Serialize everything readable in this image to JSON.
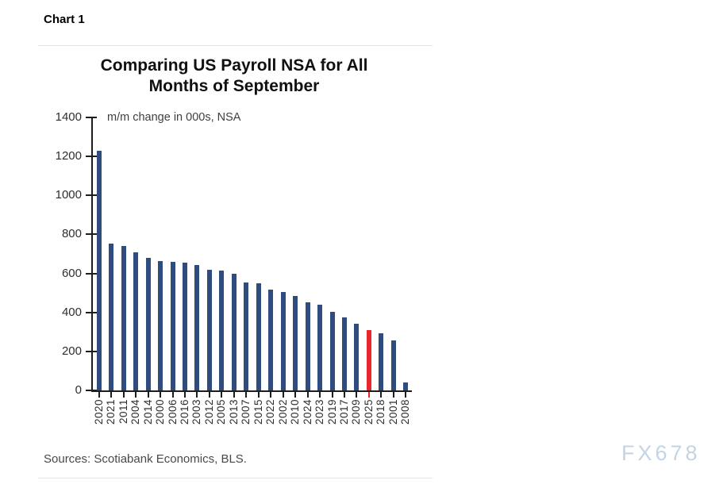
{
  "page": {
    "chart_label": "Chart 1",
    "sources": "Sources: Scotiabank Economics, BLS.",
    "watermark": "FX678"
  },
  "chart_data": {
    "type": "bar",
    "title": "Comparing US Payroll NSA for All Months of September",
    "title_lines": [
      "Comparing US Payroll NSA for All",
      "Months of September"
    ],
    "subtitle": "m/m change in 000s, NSA",
    "xlabel": "",
    "ylabel": "",
    "categories": [
      "2020",
      "2021",
      "2011",
      "2004",
      "2014",
      "2000",
      "2006",
      "2016",
      "2003",
      "2012",
      "2005",
      "2013",
      "2007",
      "2015",
      "2022",
      "2002",
      "2010",
      "2024",
      "2023",
      "2019",
      "2017",
      "2009",
      "2025",
      "2018",
      "2001",
      "2008"
    ],
    "values": [
      1230,
      755,
      740,
      710,
      680,
      665,
      660,
      655,
      645,
      620,
      615,
      600,
      555,
      550,
      515,
      505,
      485,
      450,
      440,
      405,
      375,
      340,
      310,
      295,
      255,
      40
    ],
    "highlight_category": "2025",
    "bar_color": "#2e4d7e",
    "highlight_color": "#e8262b",
    "axis_color": "#1d1d1d",
    "ylim": [
      0,
      1400
    ],
    "y_ticks": [
      1400,
      1200,
      1000,
      800,
      600,
      400,
      200,
      0
    ],
    "grid": false,
    "legend_position": "none"
  }
}
